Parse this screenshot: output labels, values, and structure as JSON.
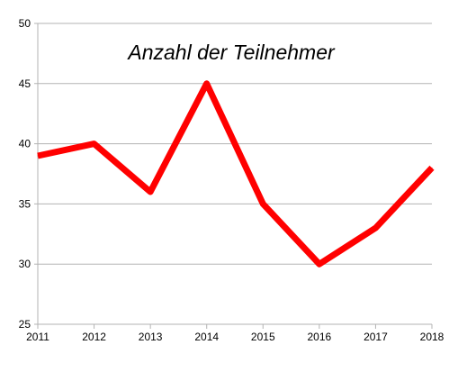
{
  "chart_data": {
    "type": "line",
    "title": "Anzahl der Teilnehmer",
    "xlabel": "",
    "ylabel": "",
    "categories": [
      "2011",
      "2012",
      "2013",
      "2014",
      "2015",
      "2016",
      "2017",
      "2018"
    ],
    "series": [
      {
        "values": [
          39,
          40,
          36,
          45,
          35,
          30,
          33,
          38
        ]
      }
    ],
    "ylim": [
      25,
      50
    ],
    "y_ticks": [
      "25",
      "30",
      "35",
      "40",
      "45",
      "50"
    ],
    "grid": true,
    "legend": "none",
    "colors": {
      "line": "#ff0000",
      "grid": "#b3b3b3",
      "axis": "#b3b3b3"
    }
  }
}
